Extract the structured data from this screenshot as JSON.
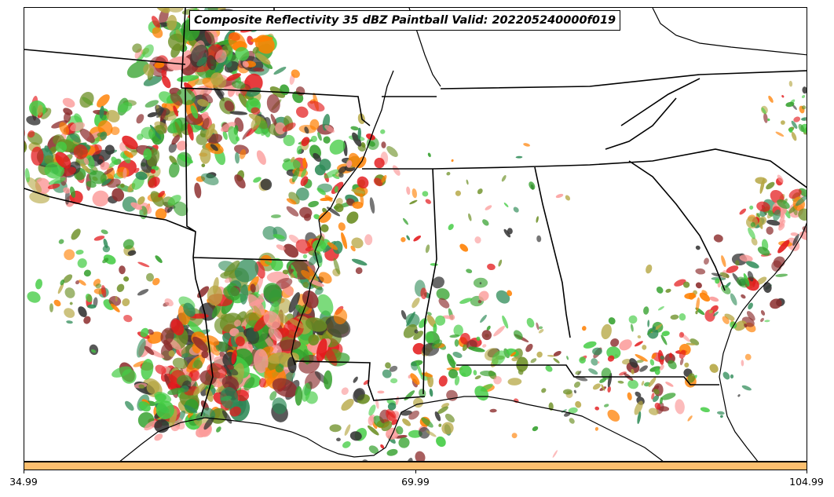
{
  "title": "Composite Reflectivity 35 dBZ Paintball Valid: 202205240000f019",
  "colorbar": {
    "color": "#fdbf6f",
    "ticks": [
      "34.99",
      "69.99",
      "104.99"
    ]
  },
  "paintball_colors": [
    "#e31a1c",
    "#ff7f00",
    "#33a02c",
    "#8c2d2d",
    "#6b8e23",
    "#b5a642",
    "#2e8b57",
    "#333333",
    "#fb9a99",
    "#44cc44"
  ],
  "map": {
    "region": "Southeastern United States",
    "basemap": "state borders and coastlines"
  }
}
